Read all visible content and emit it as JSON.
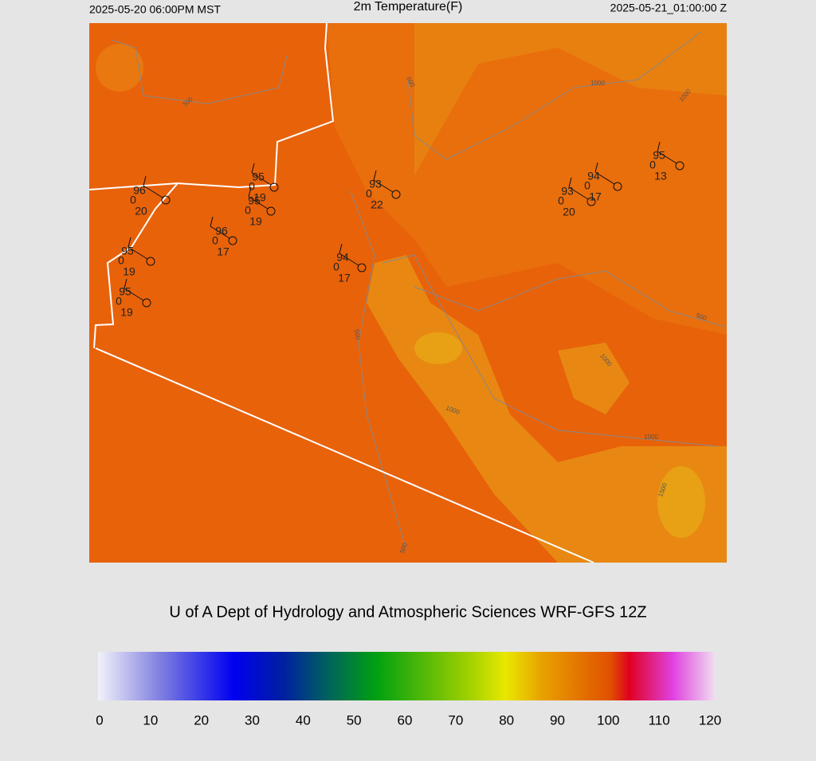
{
  "header": {
    "left": "2025-05-20 06:00PM MST",
    "title": "2m Temperature(F)",
    "right": "2025-05-21_01:00:00 Z"
  },
  "stations": [
    [
      "96",
      "0",
      "20"
    ],
    [
      "95",
      "0",
      "19"
    ],
    [
      "95",
      "0",
      "19"
    ],
    [
      "96",
      "0",
      "17"
    ],
    [
      "95",
      "0",
      "19"
    ],
    [
      "95",
      "0",
      "19"
    ],
    [
      "94",
      "0",
      "17"
    ],
    [
      "93",
      "0",
      "22"
    ],
    [
      "93",
      "0",
      "20"
    ],
    [
      "94",
      "0",
      "17"
    ],
    [
      "95",
      "0",
      "13"
    ]
  ],
  "contour_labels": [
    "500",
    "1000",
    "1000",
    "500",
    "500",
    "1000",
    "1000",
    "1000",
    "1500",
    "500",
    "500"
  ],
  "footer": "U of A Dept of Hydrology and Atmospheric Sciences WRF-GFS 12Z",
  "colorbar": {
    "range": [
      0,
      120
    ],
    "ticks": [
      0,
      10,
      20,
      30,
      40,
      50,
      60,
      70,
      80,
      90,
      100,
      110,
      120
    ]
  }
}
